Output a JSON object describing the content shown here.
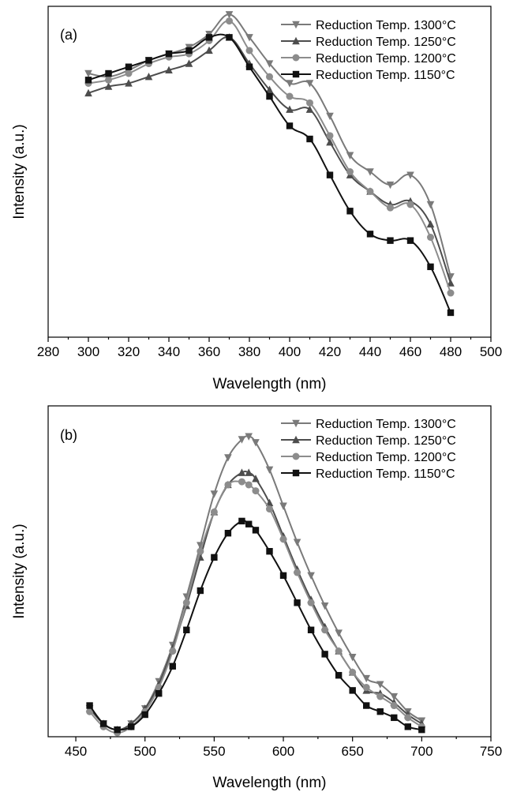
{
  "chart_data": [
    {
      "type": "line",
      "panel_label": "(a)",
      "xlabel": "Wavelength (nm)",
      "ylabel": "Intensity (a.u.)",
      "xlim": [
        280,
        500
      ],
      "xticks": [
        "280",
        "300",
        "320",
        "340",
        "360",
        "380",
        "400",
        "420",
        "440",
        "460",
        "480",
        "500"
      ],
      "ylim": [
        0,
        100
      ],
      "legend_position": "top-right",
      "x": [
        300,
        310,
        320,
        330,
        340,
        350,
        360,
        370,
        380,
        390,
        400,
        410,
        420,
        430,
        440,
        450,
        460,
        470,
        480
      ],
      "series": [
        {
          "name": "Reduction Temp. 1300°C",
          "color": "#7a7a7a",
          "marker": "triangle-down",
          "values": [
            80,
            79,
            81,
            84,
            86,
            88,
            92,
            98,
            91,
            83,
            77,
            77,
            67,
            55,
            50,
            46,
            49,
            40,
            18
          ]
        },
        {
          "name": "Reduction Temp. 1250°C",
          "color": "#4d4d4d",
          "marker": "triangle-up",
          "values": [
            74,
            76,
            77,
            79,
            81,
            83,
            87,
            91,
            83,
            75,
            69,
            69,
            59,
            49,
            44,
            40,
            41,
            34,
            16
          ]
        },
        {
          "name": "Reduction Temp. 1200°C",
          "color": "#8c8c8c",
          "marker": "circle",
          "values": [
            77,
            78,
            80,
            83,
            85,
            86,
            90,
            96,
            87,
            79,
            73,
            71,
            61,
            50,
            44,
            39,
            40,
            30,
            13
          ]
        },
        {
          "name": "Reduction Temp. 1150°C",
          "color": "#111111",
          "marker": "square",
          "values": [
            78,
            80,
            82,
            84,
            86,
            87,
            91,
            91,
            82,
            73,
            64,
            60,
            49,
            38,
            31,
            29,
            29,
            21,
            7
          ]
        }
      ]
    },
    {
      "type": "line",
      "panel_label": "(b)",
      "xlabel": "Wavelength (nm)",
      "ylabel": "Intensity (a.u.)",
      "xlim": [
        430,
        750
      ],
      "xticks": [
        "450",
        "500",
        "550",
        "600",
        "650",
        "700",
        "750"
      ],
      "ylim": [
        0,
        100
      ],
      "legend_position": "top-right",
      "x": [
        460,
        470,
        480,
        490,
        500,
        510,
        520,
        530,
        540,
        550,
        560,
        570,
        575,
        580,
        590,
        600,
        610,
        620,
        630,
        640,
        650,
        660,
        670,
        680,
        690,
        700
      ],
      "series": [
        {
          "name": "Reduction Temp. 1300°C",
          "color": "#7a7a7a",
          "marker": "triangle-down",
          "values": [
            8,
            3,
            1,
            3,
            8,
            17,
            29,
            45,
            62,
            79,
            91,
            97,
            98,
            96,
            87,
            75,
            63,
            52,
            42,
            33,
            25,
            18,
            16,
            12,
            7,
            4
          ]
        },
        {
          "name": "Reduction Temp. 1250°C",
          "color": "#4d4d4d",
          "marker": "triangle-up",
          "values": [
            8,
            3,
            1,
            3,
            8,
            16,
            28,
            42,
            58,
            73,
            82,
            86,
            86,
            84,
            76,
            65,
            54,
            44,
            35,
            27,
            20,
            14,
            13,
            10,
            6,
            3
          ]
        },
        {
          "name": "Reduction Temp. 1200°C",
          "color": "#8c8c8c",
          "marker": "circle",
          "values": [
            7,
            2,
            0,
            2,
            7,
            15,
            27,
            43,
            60,
            73,
            82,
            83,
            82,
            80,
            74,
            64,
            53,
            43,
            34,
            27,
            20,
            15,
            12,
            9,
            5,
            2
          ]
        },
        {
          "name": "Reduction Temp. 1150°C",
          "color": "#111111",
          "marker": "square",
          "values": [
            9,
            3,
            1,
            2,
            6,
            13,
            22,
            34,
            47,
            58,
            66,
            70,
            69,
            67,
            60,
            52,
            43,
            34,
            26,
            19,
            14,
            9,
            7,
            5,
            2,
            1
          ]
        }
      ]
    }
  ]
}
